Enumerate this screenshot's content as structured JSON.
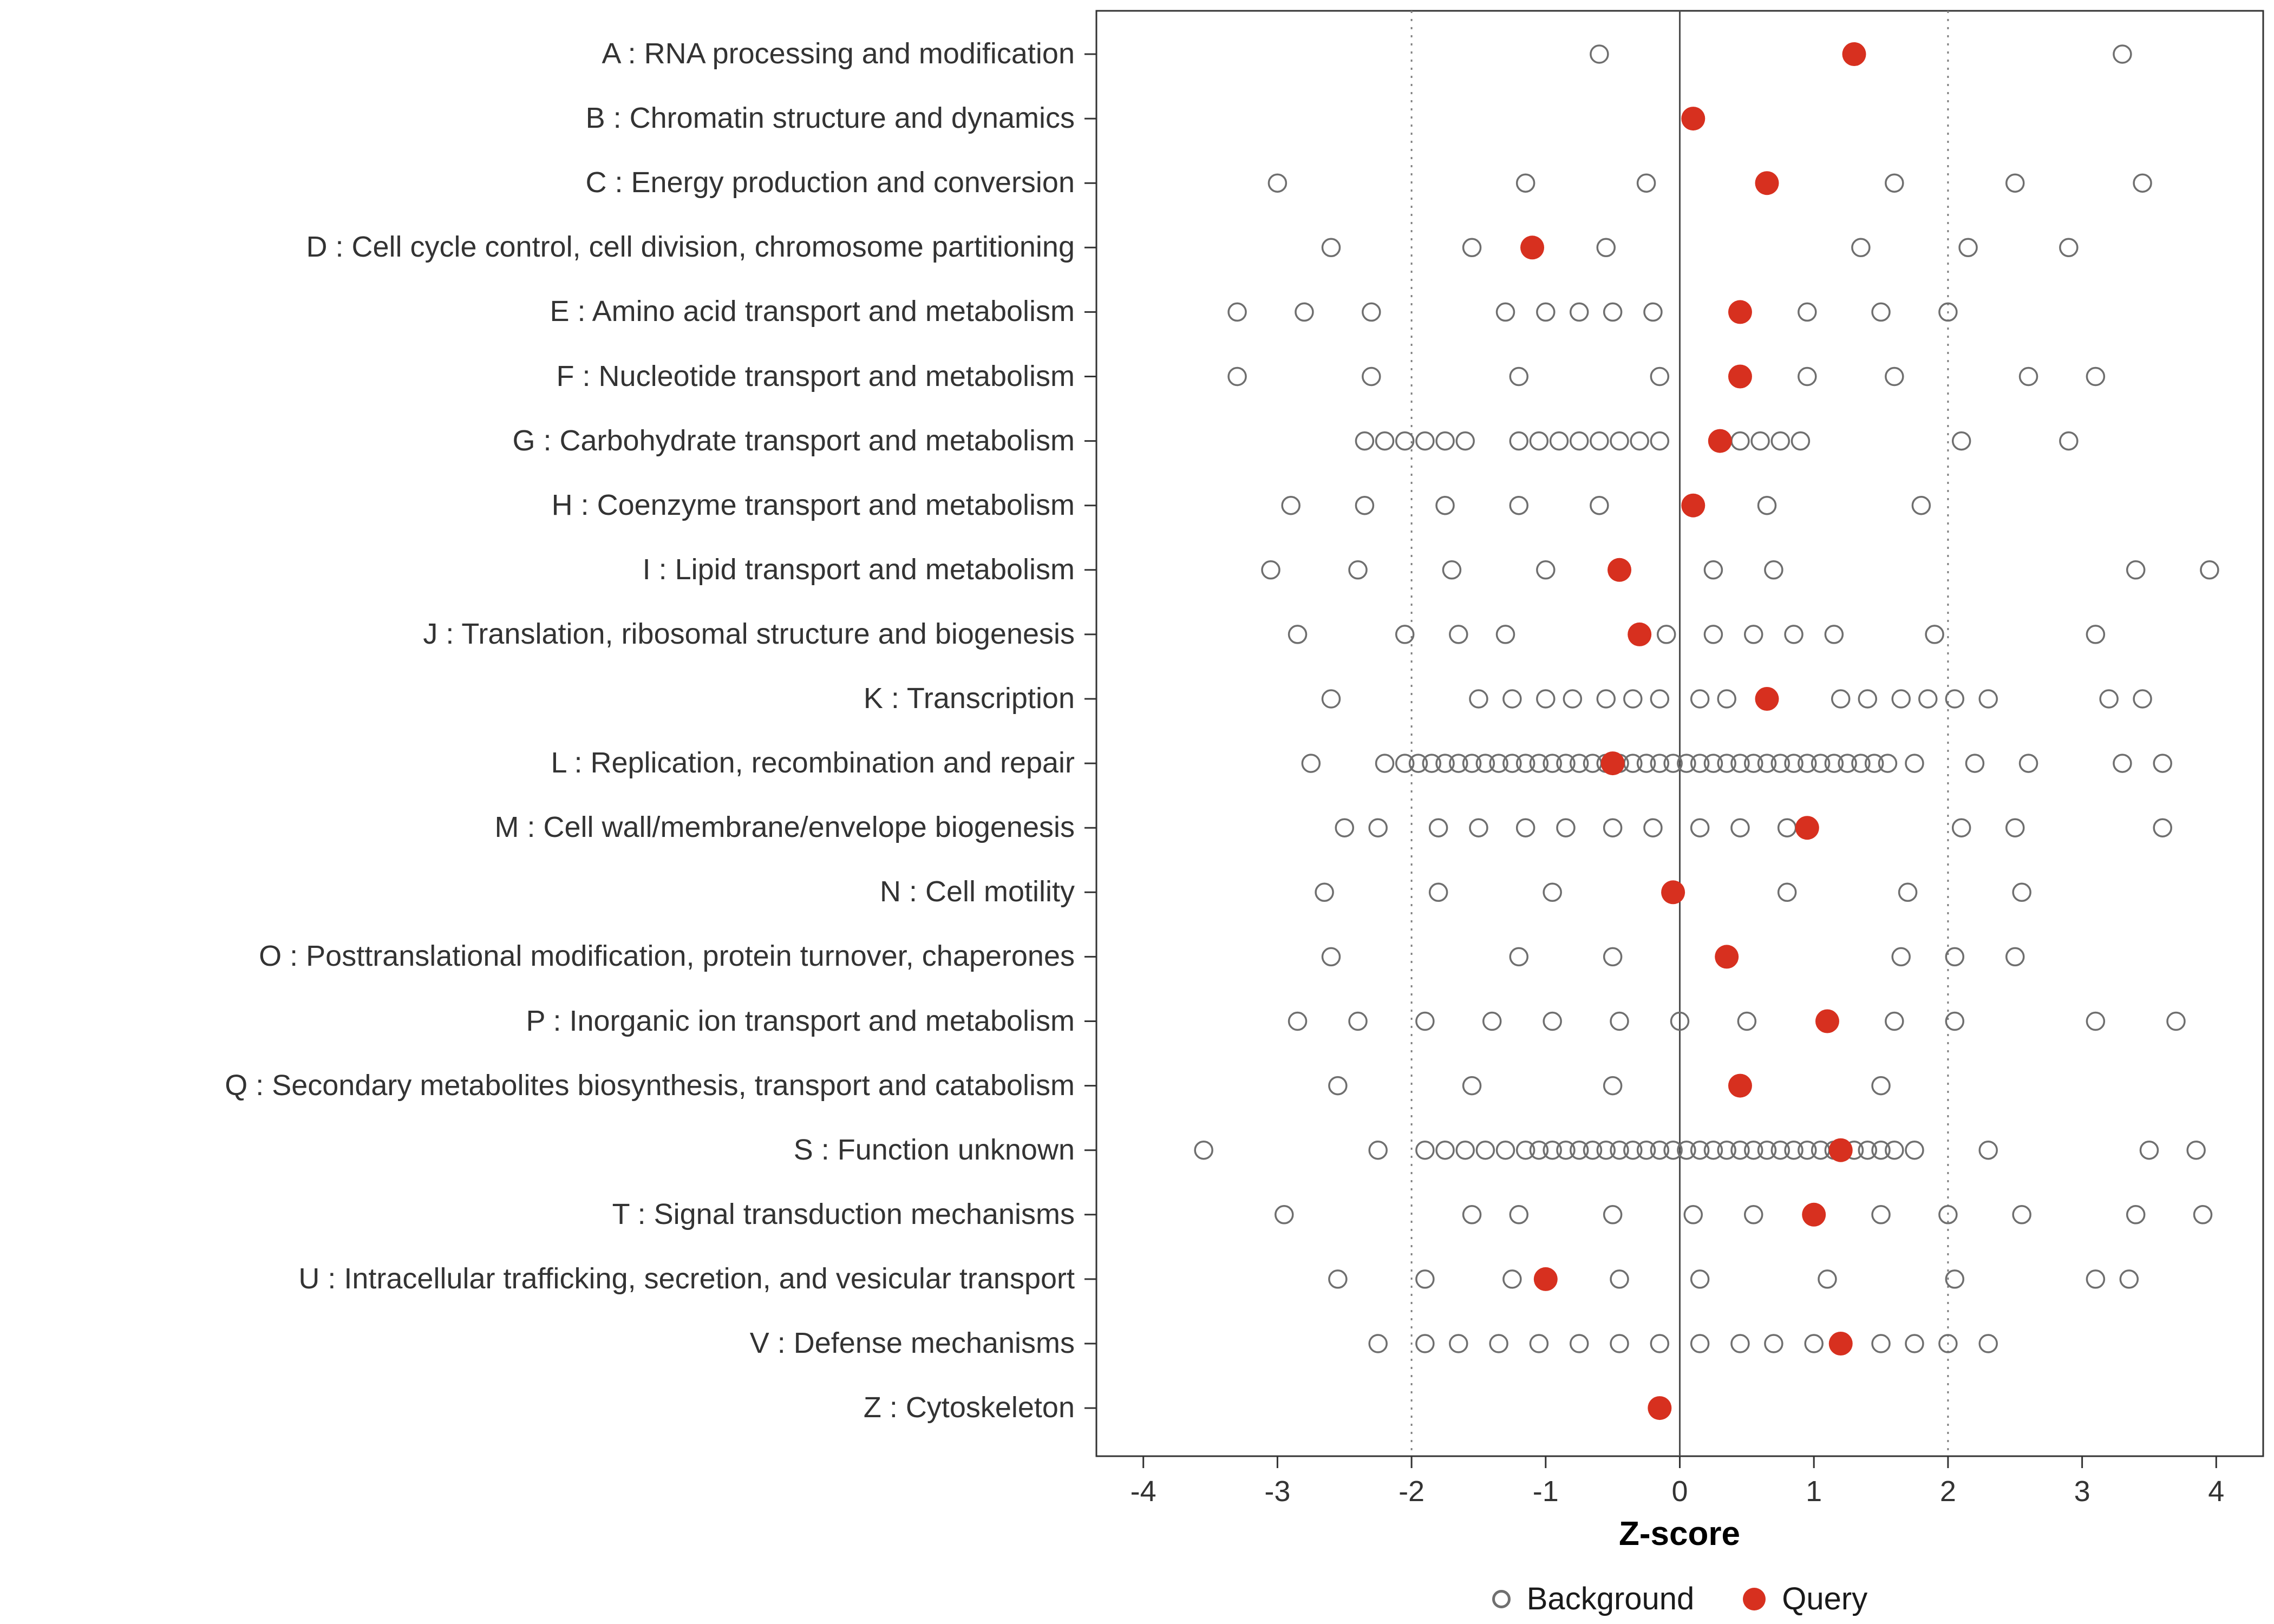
{
  "chart_data": {
    "type": "scatter",
    "title": "",
    "xlabel": "Z-score",
    "xlim": [
      -4.35,
      4.35
    ],
    "xticks": [
      -4,
      -3,
      -2,
      -1,
      0,
      1,
      2,
      3,
      4
    ],
    "reference_lines": {
      "solid_at": 0,
      "dotted_at": [
        -2,
        2
      ]
    },
    "legend": {
      "background": "Background",
      "query": "Query"
    },
    "colors": {
      "background_stroke": "#6f6f6f",
      "query_fill": "#d7301f",
      "axis_text": "#333333",
      "ref_line": "#7f7f7f",
      "zero_line": "#4d4d4d",
      "panel_border": "#333333"
    },
    "categories": [
      {
        "label": "A : RNA processing and modification",
        "query": 1.3,
        "background": [
          -0.6,
          3.3
        ]
      },
      {
        "label": "B : Chromatin structure and dynamics",
        "query": 0.1,
        "background": []
      },
      {
        "label": "C : Energy production and conversion",
        "query": 0.65,
        "background": [
          -3.0,
          -1.15,
          -0.25,
          1.6,
          2.5,
          3.45
        ]
      },
      {
        "label": "D : Cell cycle control, cell division, chromosome partitioning",
        "query": -1.1,
        "background": [
          -2.6,
          -1.55,
          -0.55,
          1.35,
          2.15,
          2.9
        ]
      },
      {
        "label": "E : Amino acid transport and metabolism",
        "query": 0.45,
        "background": [
          -3.3,
          -2.8,
          -2.3,
          -1.3,
          -1.0,
          -0.75,
          -0.5,
          -0.2,
          0.95,
          1.5,
          2.0
        ]
      },
      {
        "label": "F : Nucleotide transport and metabolism",
        "query": 0.45,
        "background": [
          -3.3,
          -2.3,
          -1.2,
          -0.15,
          0.95,
          1.6,
          2.6,
          3.1
        ]
      },
      {
        "label": "G : Carbohydrate transport and metabolism",
        "query": 0.3,
        "background": [
          -2.35,
          -2.2,
          -2.05,
          -1.9,
          -1.75,
          -1.6,
          -1.2,
          -1.05,
          -0.9,
          -0.75,
          -0.6,
          -0.45,
          -0.3,
          -0.15,
          0.45,
          0.6,
          0.75,
          0.9,
          2.1,
          2.9
        ]
      },
      {
        "label": "H : Coenzyme transport and metabolism",
        "query": 0.1,
        "background": [
          -2.9,
          -2.35,
          -1.75,
          -1.2,
          -0.6,
          0.65,
          1.8
        ]
      },
      {
        "label": "I : Lipid transport and metabolism",
        "query": -0.45,
        "background": [
          -3.05,
          -2.4,
          -1.7,
          -1.0,
          0.25,
          0.7,
          3.4,
          3.95
        ]
      },
      {
        "label": "J : Translation, ribosomal structure and biogenesis",
        "query": -0.3,
        "background": [
          -2.85,
          -2.05,
          -1.65,
          -1.3,
          -0.1,
          0.25,
          0.55,
          0.85,
          1.15,
          1.9,
          3.1
        ]
      },
      {
        "label": "K : Transcription",
        "query": 0.65,
        "background": [
          -2.6,
          -1.5,
          -1.25,
          -1.0,
          -0.8,
          -0.55,
          -0.35,
          -0.15,
          0.15,
          0.35,
          1.2,
          1.4,
          1.65,
          1.85,
          2.05,
          2.3,
          3.2,
          3.45
        ]
      },
      {
        "label": "L : Replication, recombination and repair",
        "query": -0.5,
        "background": [
          -2.75,
          -2.2,
          -2.05,
          -1.95,
          -1.85,
          -1.75,
          -1.65,
          -1.55,
          -1.45,
          -1.35,
          -1.25,
          -1.15,
          -1.05,
          -0.95,
          -0.85,
          -0.75,
          -0.65,
          -0.55,
          -0.45,
          -0.35,
          -0.25,
          -0.15,
          -0.05,
          0.05,
          0.15,
          0.25,
          0.35,
          0.45,
          0.55,
          0.65,
          0.75,
          0.85,
          0.95,
          1.05,
          1.15,
          1.25,
          1.35,
          1.45,
          1.55,
          1.75,
          2.2,
          2.6,
          3.3,
          3.6
        ]
      },
      {
        "label": "M : Cell wall/membrane/envelope biogenesis",
        "query": 0.95,
        "background": [
          -2.5,
          -2.25,
          -1.8,
          -1.5,
          -1.15,
          -0.85,
          -0.5,
          -0.2,
          0.15,
          0.45,
          0.8,
          2.1,
          2.5,
          3.6
        ]
      },
      {
        "label": "N : Cell motility",
        "query": -0.05,
        "background": [
          -2.65,
          -1.8,
          -0.95,
          0.8,
          1.7,
          2.55
        ]
      },
      {
        "label": "O : Posttranslational modification, protein turnover, chaperones",
        "query": 0.35,
        "background": [
          -2.6,
          -1.2,
          -0.5,
          1.65,
          2.05,
          2.5
        ]
      },
      {
        "label": "P : Inorganic ion transport and metabolism",
        "query": 1.1,
        "background": [
          -2.85,
          -2.4,
          -1.9,
          -1.4,
          -0.95,
          -0.45,
          0.0,
          0.5,
          1.6,
          2.05,
          3.1,
          3.7
        ]
      },
      {
        "label": "Q : Secondary metabolites biosynthesis, transport and catabolism",
        "query": 0.45,
        "background": [
          -2.55,
          -1.55,
          -0.5,
          1.5
        ]
      },
      {
        "label": "S : Function unknown",
        "query": 1.2,
        "background": [
          -3.55,
          -2.25,
          -1.9,
          -1.75,
          -1.6,
          -1.45,
          -1.3,
          -1.15,
          -1.05,
          -0.95,
          -0.85,
          -0.75,
          -0.65,
          -0.55,
          -0.45,
          -0.35,
          -0.25,
          -0.15,
          -0.05,
          0.05,
          0.15,
          0.25,
          0.35,
          0.45,
          0.55,
          0.65,
          0.75,
          0.85,
          0.95,
          1.05,
          1.15,
          1.3,
          1.4,
          1.5,
          1.6,
          1.75,
          2.3,
          3.5,
          3.85
        ]
      },
      {
        "label": "T : Signal transduction mechanisms",
        "query": 1.0,
        "background": [
          -2.95,
          -1.55,
          -1.2,
          -0.5,
          0.1,
          0.55,
          1.5,
          2.0,
          2.55,
          3.4,
          3.9
        ]
      },
      {
        "label": "U : Intracellular trafficking, secretion, and vesicular transport",
        "query": -1.0,
        "background": [
          -2.55,
          -1.9,
          -1.25,
          -0.45,
          0.15,
          1.1,
          2.05,
          3.1,
          3.35
        ]
      },
      {
        "label": "V : Defense mechanisms",
        "query": 1.2,
        "background": [
          -2.25,
          -1.9,
          -1.65,
          -1.35,
          -1.05,
          -0.75,
          -0.45,
          -0.15,
          0.15,
          0.45,
          0.7,
          1.0,
          1.5,
          1.75,
          2.0,
          2.3
        ]
      },
      {
        "label": "Z : Cytoskeleton",
        "query": -0.15,
        "background": []
      }
    ]
  }
}
